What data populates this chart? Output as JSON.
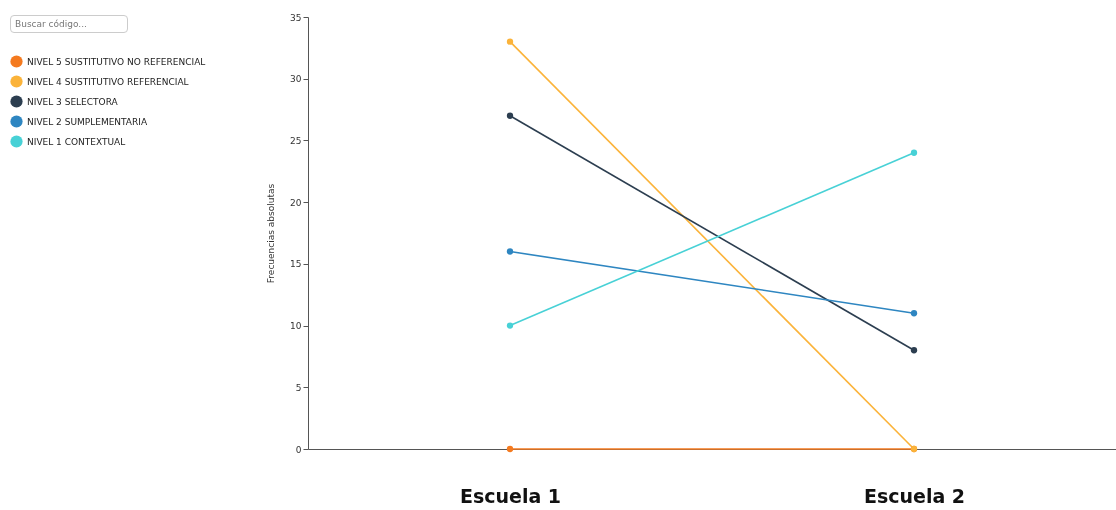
{
  "chart_data": {
    "type": "line",
    "categories": [
      "Escuela 1",
      "Escuela 2"
    ],
    "ylabel": "Frecuencias absolutas",
    "ylim": [
      0,
      35
    ],
    "yticks": [
      0,
      5,
      10,
      15,
      20,
      25,
      30,
      35
    ],
    "grid": false,
    "legend": "left",
    "marker": "circle",
    "line_style": "solid",
    "annotations": [
      "Buscar código..."
    ],
    "series": [
      {
        "name": "NIVEL 5 SUSTITUTIVO NO REFERENCIAL",
        "color": "#f47a1f",
        "values": [
          0,
          0
        ]
      },
      {
        "name": "NIVEL 4 SUSTITUTIVO REFERENCIAL",
        "color": "#fbb33a",
        "values": [
          33,
          0
        ]
      },
      {
        "name": "NIVEL 3 SELECTORA",
        "color": "#2c3e50",
        "values": [
          27,
          8
        ]
      },
      {
        "name": "NIVEL 2 SUMPLEMENTARIA",
        "color": "#2e86c1",
        "values": [
          16,
          11
        ]
      },
      {
        "name": "NIVEL 1 CONTEXTUAL",
        "color": "#48d1d6",
        "values": [
          10,
          24
        ]
      }
    ]
  }
}
